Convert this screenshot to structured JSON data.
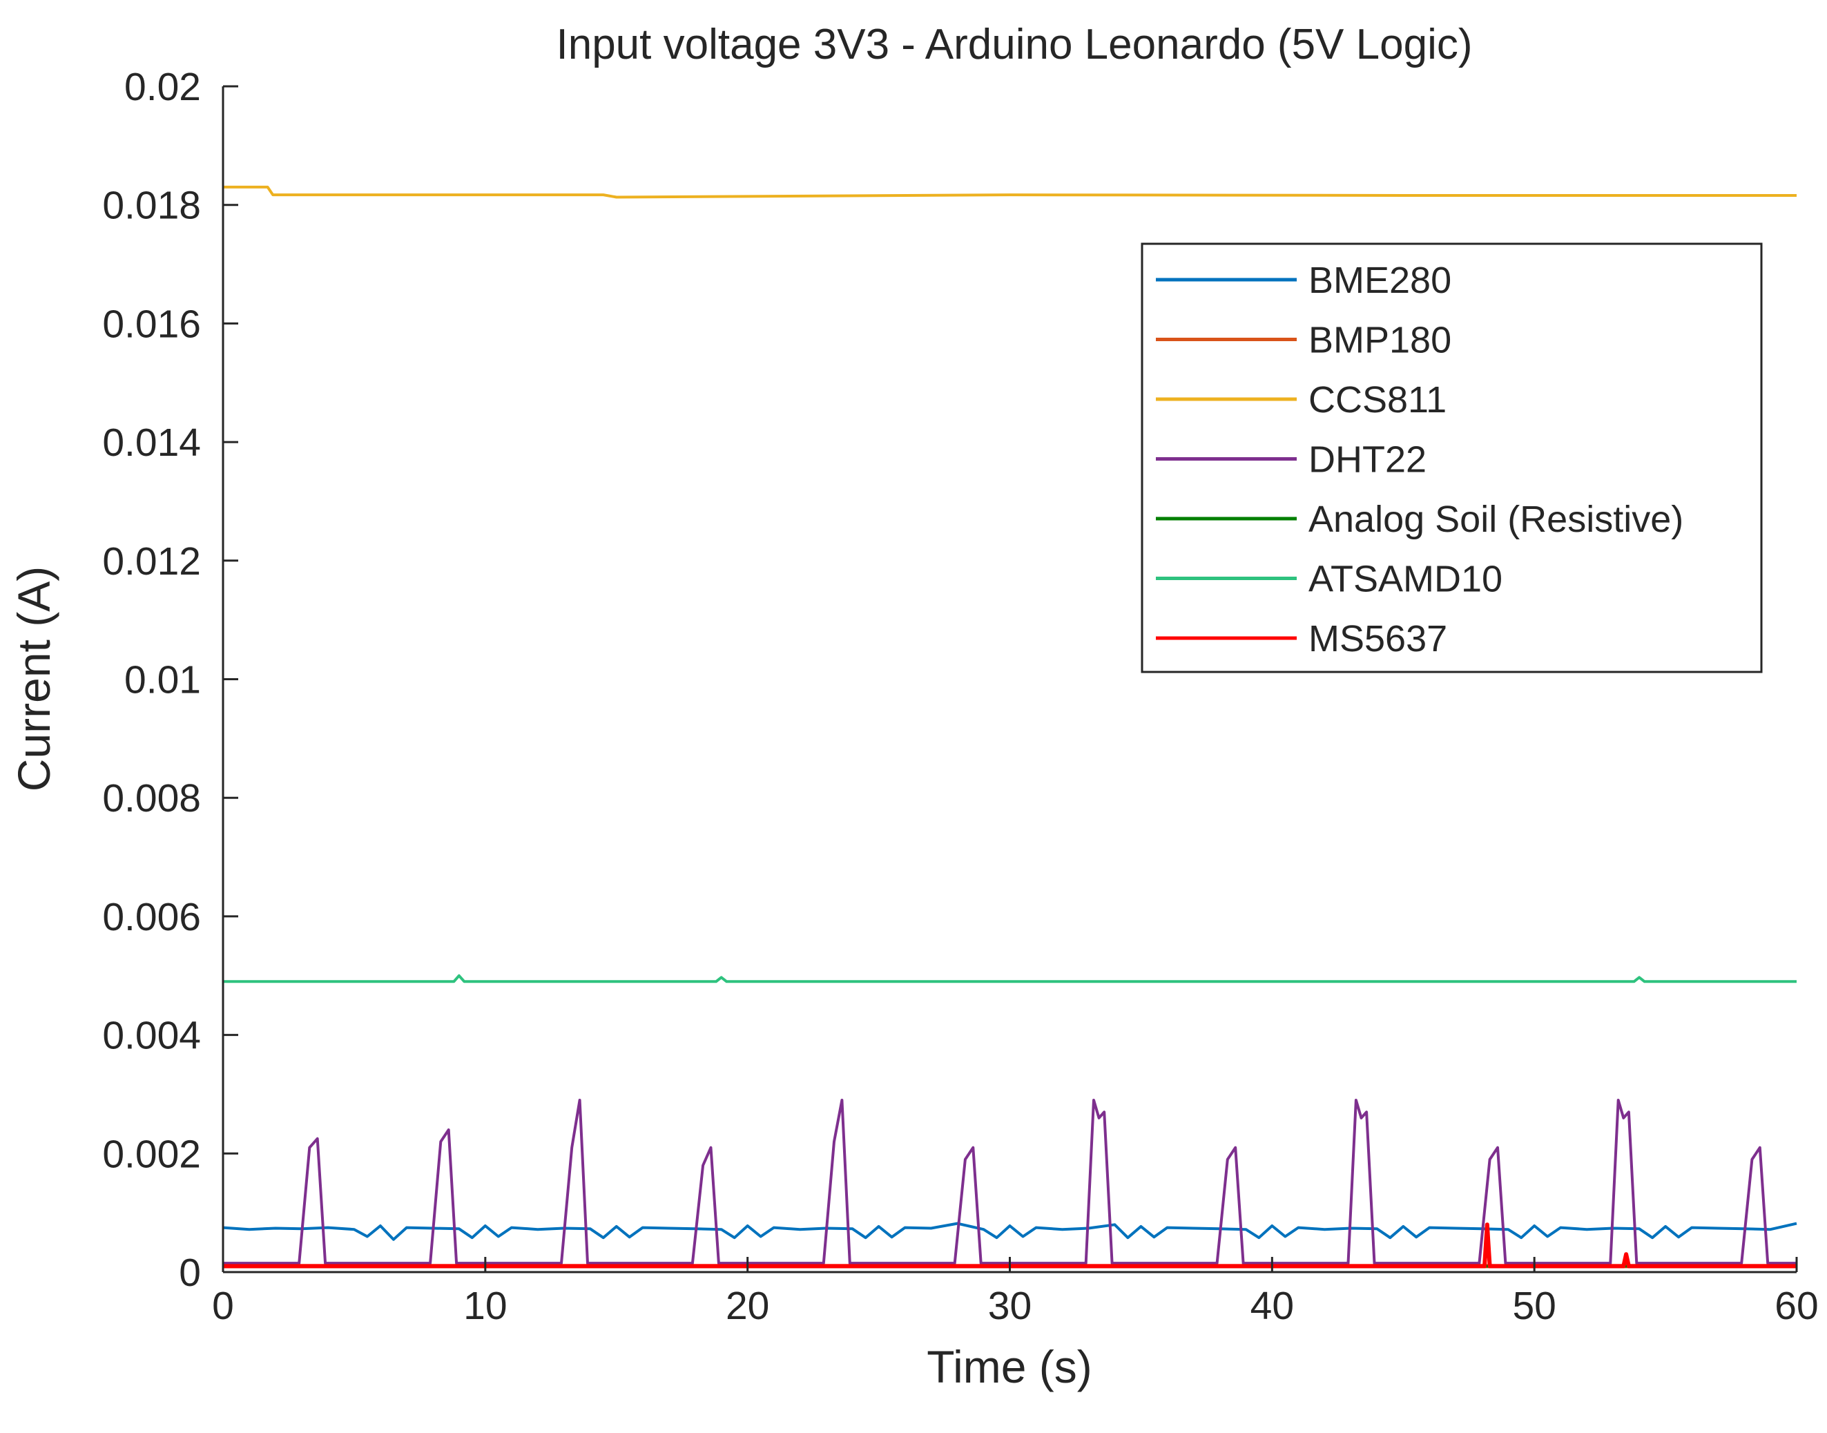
{
  "chart_data": {
    "type": "line",
    "title": "Input voltage 3V3 - Arduino Leonardo (5V Logic)",
    "xlabel": "Time (s)",
    "ylabel": "Current (A)",
    "xlim": [
      0,
      60
    ],
    "ylim": [
      0,
      0.02
    ],
    "xticks": [
      "0",
      "10",
      "20",
      "30",
      "40",
      "50",
      "60"
    ],
    "yticks": [
      "0",
      "0.002",
      "0.004",
      "0.006",
      "0.008",
      "0.01",
      "0.012",
      "0.014",
      "0.016",
      "0.018",
      "0.02"
    ],
    "grid": false,
    "legend_position": "top-right",
    "series": [
      {
        "name": "BME280",
        "color": "#0072BD",
        "x": [
          0,
          1,
          2,
          3,
          4,
          5,
          5.5,
          6,
          6.5,
          7,
          8,
          9,
          9.5,
          10,
          10.5,
          11,
          12,
          13,
          14,
          14.5,
          15,
          15.5,
          16,
          17,
          18,
          19,
          19.5,
          20,
          20.5,
          21,
          22,
          23,
          24,
          24.5,
          25,
          25.5,
          26,
          27,
          28,
          29,
          29.5,
          30,
          30.5,
          31,
          32,
          33,
          34,
          34.5,
          35,
          35.5,
          36,
          37,
          38,
          39,
          39.5,
          40,
          40.5,
          41,
          42,
          43,
          44,
          44.5,
          45,
          45.5,
          46,
          47,
          48,
          49,
          49.5,
          50,
          50.5,
          51,
          52,
          53,
          54,
          54.5,
          55,
          55.5,
          56,
          57,
          58,
          59,
          60
        ],
        "y": [
          0.00075,
          0.00072,
          0.00074,
          0.00073,
          0.00075,
          0.00072,
          0.0006,
          0.00078,
          0.00055,
          0.00075,
          0.00074,
          0.00073,
          0.00058,
          0.00078,
          0.0006,
          0.00075,
          0.00072,
          0.00074,
          0.00073,
          0.00058,
          0.00077,
          0.00059,
          0.00075,
          0.00074,
          0.00073,
          0.00072,
          0.00058,
          0.00078,
          0.0006,
          0.00075,
          0.00072,
          0.00074,
          0.00073,
          0.00058,
          0.00077,
          0.00059,
          0.00075,
          0.00074,
          0.00082,
          0.00072,
          0.00058,
          0.00078,
          0.0006,
          0.00075,
          0.00072,
          0.00074,
          0.0008,
          0.00058,
          0.00077,
          0.00059,
          0.00075,
          0.00074,
          0.00073,
          0.00072,
          0.00058,
          0.00078,
          0.0006,
          0.00075,
          0.00072,
          0.00074,
          0.00073,
          0.00058,
          0.00077,
          0.00059,
          0.00075,
          0.00074,
          0.00073,
          0.00072,
          0.00058,
          0.00078,
          0.0006,
          0.00075,
          0.00072,
          0.00074,
          0.00073,
          0.00058,
          0.00077,
          0.00059,
          0.00075,
          0.00074,
          0.00073,
          0.00072,
          0.00082
        ]
      },
      {
        "name": "BMP180",
        "color": "#D95319",
        "x": [
          0,
          60
        ],
        "y": [
          0.0001,
          0.0001
        ]
      },
      {
        "name": "CCS811",
        "color": "#EDB120",
        "x": [
          0,
          1.7,
          1.9,
          10,
          14.5,
          15,
          30,
          45,
          60
        ],
        "y": [
          0.0183,
          0.0183,
          0.01817,
          0.01817,
          0.01817,
          0.01813,
          0.01817,
          0.01816,
          0.01816
        ]
      },
      {
        "name": "DHT22",
        "color": "#7E2F8E",
        "x": [
          0,
          2.9,
          3.3,
          3.6,
          3.9,
          7.9,
          8.3,
          8.6,
          8.9,
          12.9,
          13.3,
          13.6,
          13.9,
          17.9,
          18.3,
          18.6,
          18.9,
          22.9,
          23.3,
          23.6,
          23.9,
          27.9,
          28.3,
          28.6,
          28.9,
          32.9,
          33.2,
          33.4,
          33.6,
          33.9,
          37.9,
          38.3,
          38.6,
          38.9,
          42.9,
          43.2,
          43.4,
          43.6,
          43.9,
          47.9,
          48.3,
          48.6,
          48.9,
          52.9,
          53.2,
          53.4,
          53.6,
          53.9,
          57.9,
          58.3,
          58.6,
          58.9,
          60
        ],
        "y": [
          0.00015,
          0.00015,
          0.0021,
          0.00225,
          0.00015,
          0.00015,
          0.0022,
          0.0024,
          0.00015,
          0.00015,
          0.0021,
          0.0029,
          0.00015,
          0.00015,
          0.0018,
          0.0021,
          0.00015,
          0.00015,
          0.0022,
          0.0029,
          0.00015,
          0.00015,
          0.0019,
          0.0021,
          0.00015,
          0.00015,
          0.0029,
          0.0026,
          0.0027,
          0.00015,
          0.00015,
          0.0019,
          0.0021,
          0.00015,
          0.00015,
          0.0029,
          0.0026,
          0.0027,
          0.00015,
          0.00015,
          0.0019,
          0.0021,
          0.00015,
          0.00015,
          0.0029,
          0.0026,
          0.0027,
          0.00015,
          0.00015,
          0.0019,
          0.0021,
          0.00015,
          0.00015
        ]
      },
      {
        "name": "Analog Soil (Resistive)",
        "color": "#007F00",
        "x": [
          0,
          60
        ],
        "y": [
          0.0001,
          0.0001
        ]
      },
      {
        "name": "ATSAMD10",
        "color": "#2EC27E",
        "x": [
          0,
          8.8,
          9,
          9.2,
          18.8,
          19,
          19.2,
          53.8,
          54,
          54.2,
          60
        ],
        "y": [
          0.0049,
          0.0049,
          0.005,
          0.0049,
          0.0049,
          0.00497,
          0.0049,
          0.0049,
          0.00497,
          0.0049,
          0.0049
        ]
      },
      {
        "name": "MS5637",
        "color": "#FF0000",
        "x": [
          0,
          48.1,
          48.2,
          48.3,
          48.4,
          53.4,
          53.5,
          53.6,
          60
        ],
        "y": [
          0.0001,
          0.0001,
          0.0008,
          0.0001,
          0.0001,
          0.0001,
          0.0003,
          0.0001,
          0.0001
        ]
      }
    ]
  }
}
